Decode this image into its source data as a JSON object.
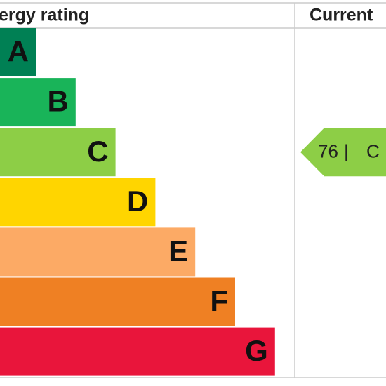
{
  "header": {
    "title": "ergy rating",
    "current_label": "Current"
  },
  "bands": [
    {
      "letter": "A",
      "color": "#008054"
    },
    {
      "letter": "B",
      "color": "#19b459"
    },
    {
      "letter": "C",
      "color": "#8dce46"
    },
    {
      "letter": "D",
      "color": "#ffd500"
    },
    {
      "letter": "E",
      "color": "#fcaa65"
    },
    {
      "letter": "F",
      "color": "#ef8023"
    },
    {
      "letter": "G",
      "color": "#e9153b"
    }
  ],
  "current": {
    "value": 76,
    "separator": "|",
    "letter": "C",
    "color": "#8dce46"
  }
}
